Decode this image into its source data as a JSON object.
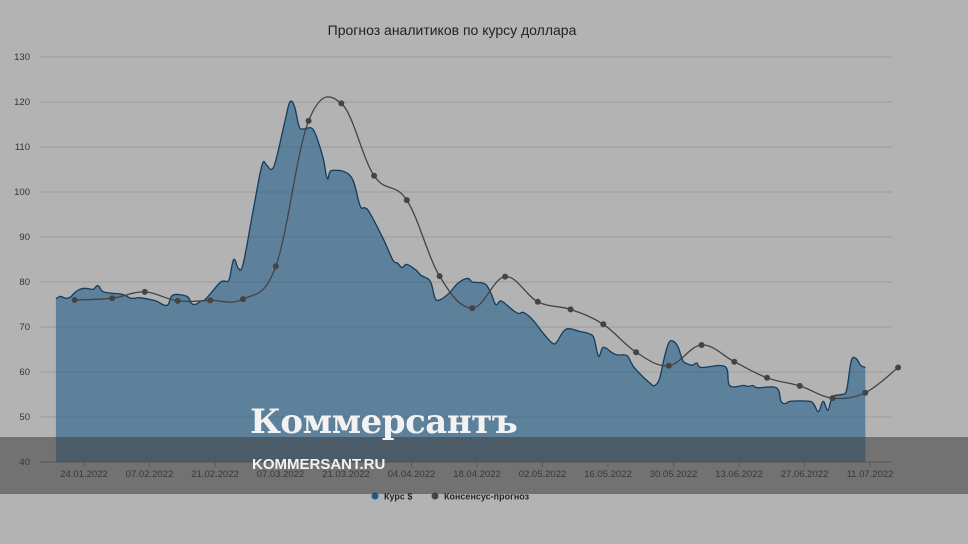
{
  "chart_data": {
    "type": "area",
    "title": "Прогноз аналитиков по курсу доллара",
    "ylim": [
      40,
      130
    ],
    "y_ticks": [
      "130",
      "120",
      "110",
      "100",
      "90",
      "80",
      "70",
      "60",
      "50",
      "40"
    ],
    "x_ticks": [
      "24.01.2022",
      "07.02.2022",
      "21.02.2022",
      "07.03.2022",
      "21.03.2022",
      "04.04.2022",
      "18.04.2022",
      "02.05.2022",
      "16.05.2022",
      "30.05.2022",
      "13.06.2022",
      "27.06.2022",
      "11.07.2022"
    ],
    "x_start": "2022-01-18",
    "legend_position": "bottom",
    "series": [
      {
        "name": "Курс $",
        "type": "area",
        "color": "#1f5c8a",
        "points": [
          [
            "2022-01-18",
            76.3
          ],
          [
            "2022-01-19",
            76.8
          ],
          [
            "2022-01-20",
            76.4
          ],
          [
            "2022-01-21",
            76.6
          ],
          [
            "2022-01-22",
            77.6
          ],
          [
            "2022-01-23",
            78.3
          ],
          [
            "2022-01-24",
            78.6
          ],
          [
            "2022-01-25",
            78.5
          ],
          [
            "2022-01-26",
            78.4
          ],
          [
            "2022-01-27",
            79.2
          ],
          [
            "2022-01-28",
            77.9
          ],
          [
            "2022-01-30",
            77.5
          ],
          [
            "2022-02-01",
            77.3
          ],
          [
            "2022-02-02",
            76.9
          ],
          [
            "2022-02-03",
            76.4
          ],
          [
            "2022-02-04",
            76.4
          ],
          [
            "2022-02-05",
            76.5
          ],
          [
            "2022-02-08",
            75.9
          ],
          [
            "2022-02-09",
            75.5
          ],
          [
            "2022-02-10",
            74.9
          ],
          [
            "2022-02-11",
            75.0
          ],
          [
            "2022-02-12",
            77.1
          ],
          [
            "2022-02-15",
            76.8
          ],
          [
            "2022-02-16",
            75.2
          ],
          [
            "2022-02-17",
            75.1
          ],
          [
            "2022-02-18",
            75.8
          ],
          [
            "2022-02-19",
            76.2
          ],
          [
            "2022-02-22",
            79.8
          ],
          [
            "2022-02-23",
            80.2
          ],
          [
            "2022-02-24",
            80.5
          ],
          [
            "2022-02-25",
            85.0
          ],
          [
            "2022-02-26",
            83.0
          ],
          [
            "2022-02-27",
            84.0
          ],
          [
            "2022-03-01",
            95.0
          ],
          [
            "2022-03-03",
            105.8
          ],
          [
            "2022-03-04",
            106.0
          ],
          [
            "2022-03-05",
            105.0
          ],
          [
            "2022-03-06",
            107.0
          ],
          [
            "2022-03-08",
            116.0
          ],
          [
            "2022-03-09",
            120.0
          ],
          [
            "2022-03-10",
            119.0
          ],
          [
            "2022-03-11",
            114.5
          ],
          [
            "2022-03-12",
            114.0
          ],
          [
            "2022-03-14",
            113.8
          ],
          [
            "2022-03-16",
            108.0
          ],
          [
            "2022-03-17",
            103.0
          ],
          [
            "2022-03-18",
            104.8
          ],
          [
            "2022-03-22",
            103.5
          ],
          [
            "2022-03-24",
            97.0
          ],
          [
            "2022-03-25",
            96.5
          ],
          [
            "2022-03-26",
            95.5
          ],
          [
            "2022-03-29",
            89.5
          ],
          [
            "2022-03-31",
            84.9
          ],
          [
            "2022-04-01",
            84.2
          ],
          [
            "2022-04-02",
            83.2
          ],
          [
            "2022-04-03",
            83.9
          ],
          [
            "2022-04-05",
            82.6
          ],
          [
            "2022-04-06",
            81.5
          ],
          [
            "2022-04-08",
            80.2
          ],
          [
            "2022-04-09",
            76.5
          ],
          [
            "2022-04-10",
            76.0
          ],
          [
            "2022-04-12",
            77.5
          ],
          [
            "2022-04-14",
            79.8
          ],
          [
            "2022-04-16",
            80.8
          ],
          [
            "2022-04-17",
            80.0
          ],
          [
            "2022-04-19",
            79.8
          ],
          [
            "2022-04-20",
            79.3
          ],
          [
            "2022-04-21",
            77.5
          ],
          [
            "2022-04-22",
            75.0
          ],
          [
            "2022-04-23",
            75.8
          ],
          [
            "2022-04-24",
            75.2
          ],
          [
            "2022-04-26",
            73.5
          ],
          [
            "2022-04-27",
            73.0
          ],
          [
            "2022-04-28",
            73.2
          ],
          [
            "2022-04-30",
            71.5
          ],
          [
            "2022-05-02",
            68.8
          ],
          [
            "2022-05-04",
            66.5
          ],
          [
            "2022-05-05",
            66.6
          ],
          [
            "2022-05-07",
            69.5
          ],
          [
            "2022-05-10",
            69.0
          ],
          [
            "2022-05-12",
            68.5
          ],
          [
            "2022-05-13",
            67.5
          ],
          [
            "2022-05-14",
            63.5
          ],
          [
            "2022-05-15",
            65.5
          ],
          [
            "2022-05-17",
            64.2
          ],
          [
            "2022-05-18",
            63.8
          ],
          [
            "2022-05-20",
            63.7
          ],
          [
            "2022-05-21",
            62.0
          ],
          [
            "2022-05-22",
            60.5
          ],
          [
            "2022-05-25",
            57.5
          ],
          [
            "2022-05-26",
            57.0
          ],
          [
            "2022-05-27",
            58.5
          ],
          [
            "2022-05-28",
            63.0
          ],
          [
            "2022-05-29",
            66.5
          ],
          [
            "2022-05-30",
            66.8
          ],
          [
            "2022-05-31",
            65.5
          ],
          [
            "2022-06-01",
            62.5
          ],
          [
            "2022-06-02",
            61.8
          ],
          [
            "2022-06-03",
            61.5
          ],
          [
            "2022-06-04",
            62.0
          ],
          [
            "2022-06-05",
            61.0
          ],
          [
            "2022-06-10",
            61.2
          ],
          [
            "2022-06-11",
            57.0
          ],
          [
            "2022-06-14",
            57.0
          ],
          [
            "2022-06-15",
            56.8
          ],
          [
            "2022-06-16",
            57.0
          ],
          [
            "2022-06-17",
            56.5
          ],
          [
            "2022-06-21",
            56.5
          ],
          [
            "2022-06-22",
            53.5
          ],
          [
            "2022-06-23",
            53.0
          ],
          [
            "2022-06-24",
            53.5
          ],
          [
            "2022-06-28",
            53.5
          ],
          [
            "2022-06-29",
            52.8
          ],
          [
            "2022-06-30",
            51.2
          ],
          [
            "2022-07-01",
            53.5
          ],
          [
            "2022-07-02",
            51.5
          ],
          [
            "2022-07-03",
            54.5
          ],
          [
            "2022-07-05",
            55.0
          ],
          [
            "2022-07-06",
            56.0
          ],
          [
            "2022-07-07",
            62.5
          ],
          [
            "2022-07-08",
            63.0
          ],
          [
            "2022-07-09",
            61.5
          ],
          [
            "2022-07-10",
            61.0
          ]
        ]
      },
      {
        "name": "Консенсус-прогноз",
        "type": "line",
        "color": "#444444",
        "points": [
          [
            "2022-01-22",
            76.0
          ],
          [
            "2022-01-30",
            76.4
          ],
          [
            "2022-02-06",
            77.8
          ],
          [
            "2022-02-13",
            75.8
          ],
          [
            "2022-02-20",
            75.9
          ],
          [
            "2022-02-27",
            76.2
          ],
          [
            "2022-03-06",
            83.5
          ],
          [
            "2022-03-13",
            115.8
          ],
          [
            "2022-03-20",
            119.7
          ],
          [
            "2022-03-27",
            103.6
          ],
          [
            "2022-04-03",
            98.2
          ],
          [
            "2022-04-10",
            81.3
          ],
          [
            "2022-04-17",
            74.2
          ],
          [
            "2022-04-24",
            81.2
          ],
          [
            "2022-05-01",
            75.6
          ],
          [
            "2022-05-08",
            73.9
          ],
          [
            "2022-05-15",
            70.6
          ],
          [
            "2022-05-22",
            64.4
          ],
          [
            "2022-05-29",
            61.4
          ],
          [
            "2022-06-05",
            66.0
          ],
          [
            "2022-06-12",
            62.3
          ],
          [
            "2022-06-19",
            58.7
          ],
          [
            "2022-06-26",
            56.9
          ],
          [
            "2022-07-03",
            54.2
          ],
          [
            "2022-07-10",
            55.4
          ],
          [
            "2022-07-17",
            61.0
          ]
        ]
      }
    ]
  },
  "watermark": {
    "logo": "Коммерсантъ",
    "url": "KOMMERSANT.RU"
  }
}
